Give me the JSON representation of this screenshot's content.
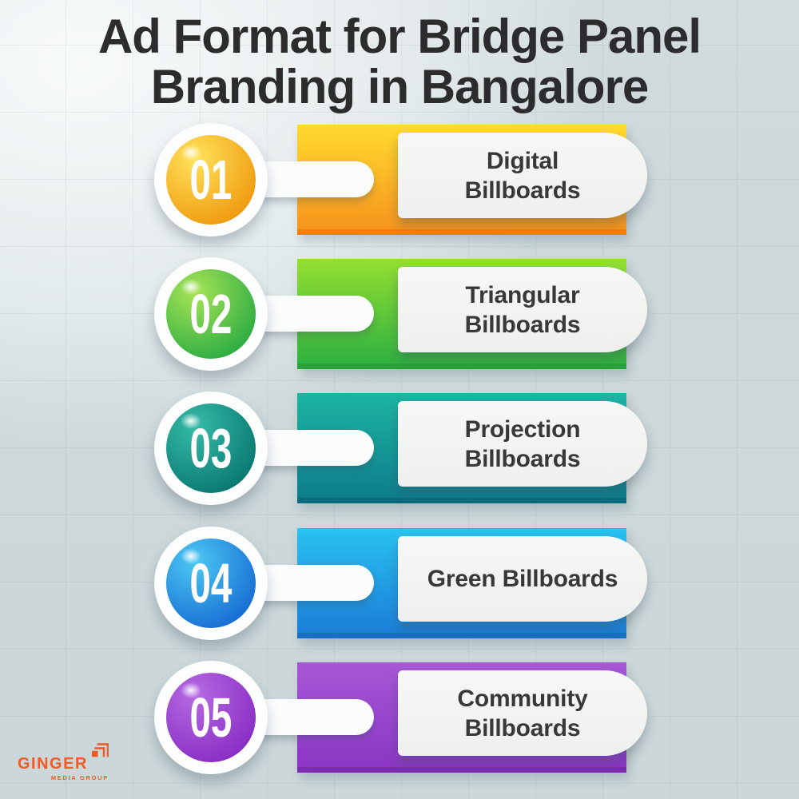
{
  "title": {
    "line1": "Ad Format for Bridge Panel",
    "line2": "Branding in Bangalore"
  },
  "items": [
    {
      "number": "01",
      "label_lines": [
        "Digital",
        "Billboards"
      ],
      "colors": {
        "bar_top": "#ffdb2e",
        "bar_bottom": "#f6941d",
        "bar_edge": "#ee8307",
        "circle_top": "#ffe35c",
        "circle_bottom": "#f09c10"
      }
    },
    {
      "number": "02",
      "label_lines": [
        "Triangular",
        "Billboards"
      ],
      "colors": {
        "bar_top": "#94df31",
        "bar_bottom": "#2fb140",
        "bar_edge": "#2aa23b",
        "circle_top": "#a8e455",
        "circle_bottom": "#2fae43"
      }
    },
    {
      "number": "03",
      "label_lines": [
        "Projection",
        "Billboards"
      ],
      "colors": {
        "bar_top": "#1db5a2",
        "bar_bottom": "#0d7d8c",
        "bar_edge": "#0b6b7c",
        "circle_top": "#36bba7",
        "circle_bottom": "#0a7a72"
      }
    },
    {
      "number": "04",
      "label_lines": [
        "Green Billboards"
      ],
      "colors": {
        "bar_top": "#29c2f0",
        "bar_bottom": "#1b7ed8",
        "bar_edge": "#176fc4",
        "circle_top": "#4cc9f3",
        "circle_bottom": "#186fd4"
      }
    },
    {
      "number": "05",
      "label_lines": [
        "Community",
        "Billboards"
      ],
      "colors": {
        "bar_top": "#a658d6",
        "bar_bottom": "#8c36c5",
        "bar_edge": "#7b2cb2",
        "circle_top": "#b56ae2",
        "circle_bottom": "#8a2fc5"
      }
    }
  ],
  "logo": {
    "name": "GINGER",
    "tagline": "MEDIA GROUP",
    "color": "#f15a24"
  },
  "background": {
    "base": "#ccd8da",
    "highlight": "#f7f9fa"
  }
}
